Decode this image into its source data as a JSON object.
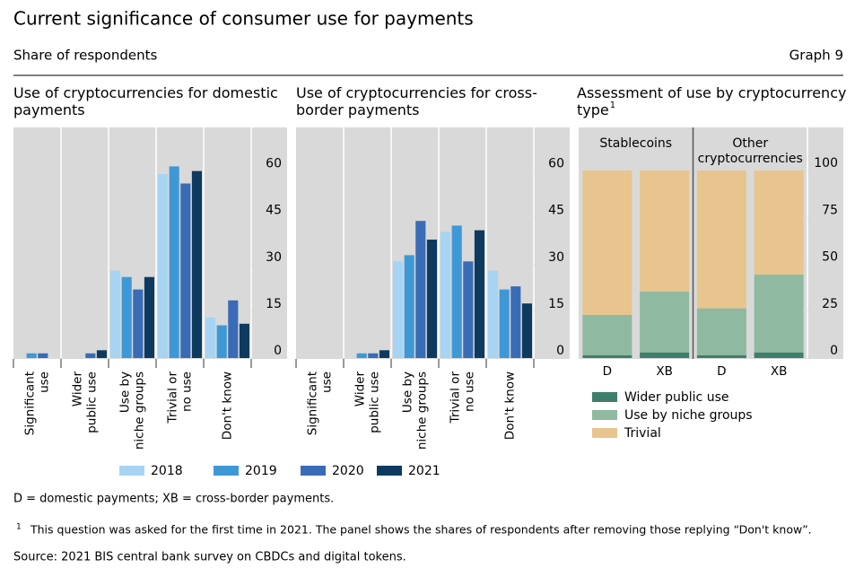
{
  "header": {
    "title": "Current significance of consumer use for payments",
    "subtitle": "Share of respondents",
    "graph_number": "Graph 9"
  },
  "chart_data": [
    {
      "type": "bar",
      "title": "Use of cryptocurrencies for domestic\npayments",
      "categories": [
        "Significant\nuse",
        "Wider\npublic use",
        "Use by\nniche groups",
        "Trivial or\nno use",
        "Don't know"
      ],
      "series": [
        {
          "name": "2018",
          "color": "#a6d4f2",
          "values": [
            0,
            0,
            28,
            59,
            13
          ]
        },
        {
          "name": "2019",
          "color": "#3f98d6",
          "values": [
            1.5,
            0,
            26,
            61.5,
            10.5
          ]
        },
        {
          "name": "2020",
          "color": "#3a6bb5",
          "values": [
            1.5,
            1.5,
            22,
            56,
            18.5
          ]
        },
        {
          "name": "2021",
          "color": "#0f3a5f",
          "values": [
            0,
            2.5,
            26,
            60,
            11
          ]
        }
      ],
      "ylim": [
        0,
        74
      ],
      "yticks": [
        0,
        15,
        30,
        45,
        60
      ]
    },
    {
      "type": "bar",
      "title": "Use of cryptocurrencies for cross-\nborder payments",
      "categories": [
        "Significant\nuse",
        "Wider\npublic use",
        "Use by\nniche groups",
        "Trivial or\nno use",
        "Don't know"
      ],
      "series": [
        {
          "color": "#a6d4f2",
          "values": [
            0,
            0,
            31,
            40.5,
            28
          ]
        },
        {
          "color": "#3f98d6",
          "values": [
            0,
            1.5,
            33,
            42.5,
            22
          ]
        },
        {
          "color": "#3a6bb5",
          "values": [
            0,
            1.5,
            44,
            31,
            23
          ]
        },
        {
          "color": "#0f3a5f",
          "values": [
            0,
            2.5,
            38,
            41,
            17.5
          ]
        }
      ],
      "ylim": [
        0,
        74
      ],
      "yticks": [
        0,
        15,
        30,
        45,
        60
      ]
    },
    {
      "type": "stacked_bar",
      "title": "Assessment of use by cryptocurrency\ntype",
      "title_note": "1",
      "groups": [
        "Stablecoins",
        "Other\ncryptocurrencies"
      ],
      "categories": [
        "D",
        "XB",
        "D",
        "XB"
      ],
      "series": [
        {
          "name": "Wider public use",
          "color": "#3d7f6b",
          "values": [
            1.5,
            3,
            1.5,
            3
          ]
        },
        {
          "name": "Use by niche groups",
          "color": "#8fb9a0",
          "values": [
            21.5,
            32.5,
            25,
            41.5
          ]
        },
        {
          "name": "Trivial",
          "color": "#e8c48e",
          "values": [
            77,
            64.5,
            73.5,
            55.5
          ]
        }
      ],
      "ylim": [
        0,
        123
      ],
      "yticks": [
        0,
        25,
        50,
        75,
        100
      ]
    }
  ],
  "notes": {
    "abbreviations": "D = domestic payments; XB = cross-border payments.",
    "footnote_mark": "1",
    "footnote": "This question was asked for the first time in 2021. The panel shows the shares of respondents after removing those replying “Don't know”.",
    "source": "Source: 2021 BIS central bank survey on CBDCs and digital tokens."
  }
}
